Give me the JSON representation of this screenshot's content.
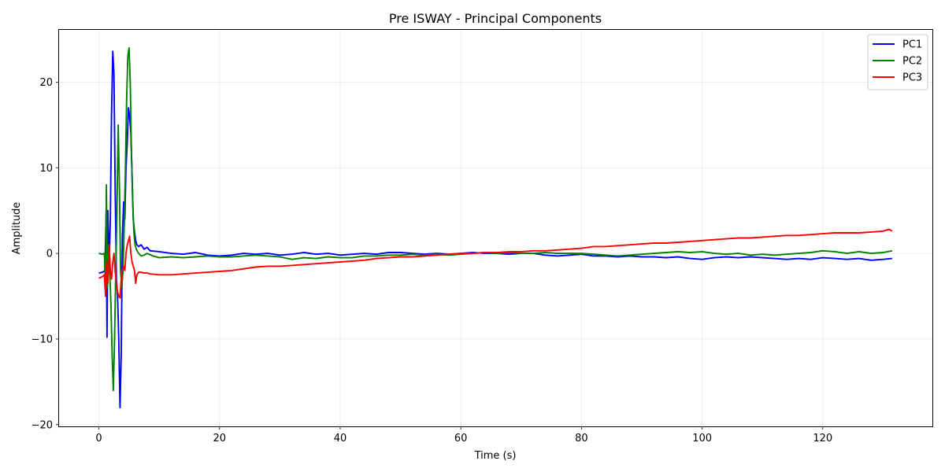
{
  "chart_data": {
    "type": "line",
    "title": "Pre ISWAY - Principal Components",
    "xlabel": "Time (s)",
    "ylabel": "Amplitude",
    "xlim": [
      -6.6,
      138.3
    ],
    "ylim": [
      -20.2,
      26.1
    ],
    "xticks": [
      0,
      20,
      40,
      60,
      80,
      100,
      120
    ],
    "xtick_labels": [
      "0",
      "20",
      "40",
      "60",
      "80",
      "100",
      "120"
    ],
    "yticks": [
      -20,
      -10,
      0,
      10,
      20
    ],
    "ytick_labels": [
      "−20",
      "−10",
      "0",
      "10",
      "20"
    ],
    "grid": true,
    "legend_position": "top-right",
    "series": [
      {
        "name": "PC1",
        "color": "#0000ff",
        "x": [
          0,
          0.6,
          1.0,
          1.2,
          1.35,
          1.5,
          1.7,
          1.9,
          2.1,
          2.3,
          2.5,
          2.7,
          2.9,
          3.1,
          3.3,
          3.5,
          3.7,
          3.9,
          4.1,
          4.3,
          4.5,
          4.7,
          4.9,
          5.1,
          5.3,
          5.5,
          5.7,
          5.9,
          6.1,
          6.3,
          6.6,
          7.0,
          7.5,
          8.0,
          8.5,
          10,
          12,
          14,
          16,
          18,
          20,
          22,
          24,
          26,
          28,
          30,
          32,
          34,
          36,
          38,
          40,
          42,
          44,
          46,
          48,
          50,
          52,
          54,
          56,
          58,
          60,
          62,
          64,
          66,
          68,
          70,
          72,
          74,
          76,
          78,
          80,
          82,
          84,
          86,
          88,
          90,
          92,
          94,
          96,
          98,
          100,
          102,
          104,
          106,
          108,
          110,
          112,
          114,
          116,
          118,
          120,
          122,
          124,
          126,
          128,
          130,
          131.5
        ],
        "y": [
          -2.3,
          -2.2,
          -2.0,
          4.8,
          -9.8,
          5.0,
          -1.5,
          4.0,
          16.0,
          23.6,
          21.0,
          8.0,
          -3.0,
          -5.0,
          -10.0,
          -18.0,
          -12.0,
          2.0,
          6.0,
          4.0,
          10.0,
          13.0,
          17.0,
          16.0,
          14.0,
          9.0,
          4.0,
          2.5,
          1.5,
          1.0,
          0.8,
          1.0,
          0.5,
          0.7,
          0.3,
          0.2,
          0.0,
          -0.1,
          0.1,
          -0.2,
          -0.3,
          -0.2,
          0.0,
          -0.1,
          0.0,
          -0.2,
          -0.1,
          0.1,
          -0.1,
          0.0,
          -0.2,
          -0.1,
          0.0,
          -0.1,
          0.1,
          0.1,
          0.0,
          -0.1,
          0.0,
          -0.1,
          0.0,
          0.1,
          0.0,
          0.0,
          -0.1,
          0.0,
          0.0,
          -0.2,
          -0.3,
          -0.2,
          -0.1,
          -0.3,
          -0.3,
          -0.4,
          -0.3,
          -0.4,
          -0.4,
          -0.5,
          -0.4,
          -0.6,
          -0.7,
          -0.5,
          -0.4,
          -0.5,
          -0.4,
          -0.5,
          -0.6,
          -0.7,
          -0.6,
          -0.7,
          -0.5,
          -0.6,
          -0.7,
          -0.6,
          -0.8,
          -0.7,
          -0.6
        ]
      },
      {
        "name": "PC2",
        "color": "#008000",
        "x": [
          0,
          0.6,
          0.9,
          1.1,
          1.25,
          1.4,
          1.6,
          1.8,
          2.0,
          2.2,
          2.4,
          2.6,
          2.8,
          3.0,
          3.2,
          3.4,
          3.6,
          3.8,
          4.0,
          4.2,
          4.4,
          4.6,
          4.8,
          5.0,
          5.2,
          5.4,
          5.6,
          5.8,
          6.0,
          6.2,
          6.4,
          6.6,
          7.0,
          7.5,
          8.0,
          9,
          10,
          12,
          14,
          16,
          18,
          20,
          22,
          24,
          26,
          28,
          30,
          32,
          34,
          36,
          38,
          40,
          42,
          44,
          46,
          48,
          50,
          52,
          54,
          56,
          58,
          60,
          62,
          64,
          66,
          68,
          70,
          72,
          74,
          76,
          78,
          80,
          82,
          84,
          86,
          88,
          90,
          92,
          94,
          96,
          98,
          100,
          102,
          104,
          106,
          108,
          110,
          112,
          114,
          116,
          118,
          120,
          122,
          124,
          126,
          128,
          130,
          131.5
        ],
        "y": [
          0.0,
          -0.1,
          0.0,
          -4.0,
          8.0,
          -4.0,
          1.0,
          -2.0,
          -6.0,
          -12.0,
          -16.0,
          -10.0,
          -2.0,
          5.0,
          15.0,
          8.0,
          -2.0,
          -4.0,
          -2.0,
          3.0,
          10.0,
          18.0,
          23.0,
          24.0,
          20.0,
          12.0,
          6.0,
          2.5,
          1.0,
          0.5,
          0.2,
          0.0,
          -0.3,
          -0.2,
          0.0,
          -0.3,
          -0.5,
          -0.4,
          -0.5,
          -0.4,
          -0.3,
          -0.4,
          -0.4,
          -0.3,
          -0.2,
          -0.3,
          -0.4,
          -0.7,
          -0.5,
          -0.6,
          -0.4,
          -0.5,
          -0.5,
          -0.3,
          -0.3,
          -0.2,
          -0.2,
          -0.1,
          -0.2,
          -0.1,
          -0.2,
          -0.1,
          0.0,
          0.1,
          0.0,
          0.1,
          0.0,
          0.0,
          0.1,
          0.0,
          0.0,
          0.0,
          -0.1,
          -0.2,
          -0.3,
          -0.2,
          -0.1,
          0.0,
          0.1,
          0.2,
          0.1,
          0.2,
          0.0,
          -0.1,
          0.0,
          -0.2,
          -0.1,
          -0.2,
          -0.1,
          0.0,
          0.1,
          0.3,
          0.2,
          0.0,
          0.2,
          0.0,
          0.1,
          0.3
        ]
      },
      {
        "name": "PC3",
        "color": "#ff0000",
        "x": [
          0,
          0.6,
          0.9,
          1.1,
          1.3,
          1.5,
          1.7,
          1.9,
          2.1,
          2.3,
          2.5,
          2.7,
          2.9,
          3.1,
          3.3,
          3.5,
          3.7,
          3.9,
          4.1,
          4.3,
          4.5,
          4.7,
          4.9,
          5.1,
          5.3,
          5.5,
          5.7,
          5.9,
          6.1,
          6.3,
          6.6,
          7.0,
          7.5,
          8.0,
          8.5,
          10,
          12,
          14,
          16,
          18,
          20,
          22,
          24,
          26,
          28,
          30,
          32,
          34,
          36,
          38,
          40,
          42,
          44,
          46,
          48,
          50,
          52,
          54,
          56,
          58,
          60,
          62,
          64,
          66,
          68,
          70,
          72,
          74,
          76,
          78,
          80,
          82,
          84,
          86,
          88,
          90,
          92,
          94,
          96,
          98,
          100,
          102,
          104,
          106,
          108,
          110,
          112,
          114,
          116,
          118,
          120,
          122,
          124,
          126,
          128,
          130,
          131.0,
          131.5
        ],
        "y": [
          -2.9,
          -2.7,
          -2.5,
          -5.0,
          -1.0,
          -3.5,
          1.0,
          -2.0,
          -3.0,
          -1.0,
          0.0,
          -2.0,
          -3.5,
          -4.5,
          -5.0,
          -5.2,
          -3.0,
          -2.0,
          -1.5,
          -2.0,
          0.0,
          1.0,
          1.5,
          2.0,
          0.0,
          -1.0,
          -1.5,
          -2.0,
          -3.5,
          -2.5,
          -2.2,
          -2.2,
          -2.3,
          -2.3,
          -2.4,
          -2.5,
          -2.5,
          -2.4,
          -2.3,
          -2.2,
          -2.1,
          -2.0,
          -1.8,
          -1.6,
          -1.5,
          -1.5,
          -1.4,
          -1.3,
          -1.2,
          -1.1,
          -1.0,
          -0.9,
          -0.8,
          -0.6,
          -0.5,
          -0.4,
          -0.4,
          -0.3,
          -0.2,
          -0.1,
          0.0,
          0.0,
          0.1,
          0.1,
          0.2,
          0.2,
          0.3,
          0.3,
          0.4,
          0.5,
          0.6,
          0.8,
          0.8,
          0.9,
          1.0,
          1.1,
          1.2,
          1.2,
          1.3,
          1.4,
          1.5,
          1.6,
          1.7,
          1.8,
          1.8,
          1.9,
          2.0,
          2.1,
          2.1,
          2.2,
          2.3,
          2.4,
          2.4,
          2.4,
          2.5,
          2.6,
          2.8,
          2.6
        ]
      }
    ]
  }
}
